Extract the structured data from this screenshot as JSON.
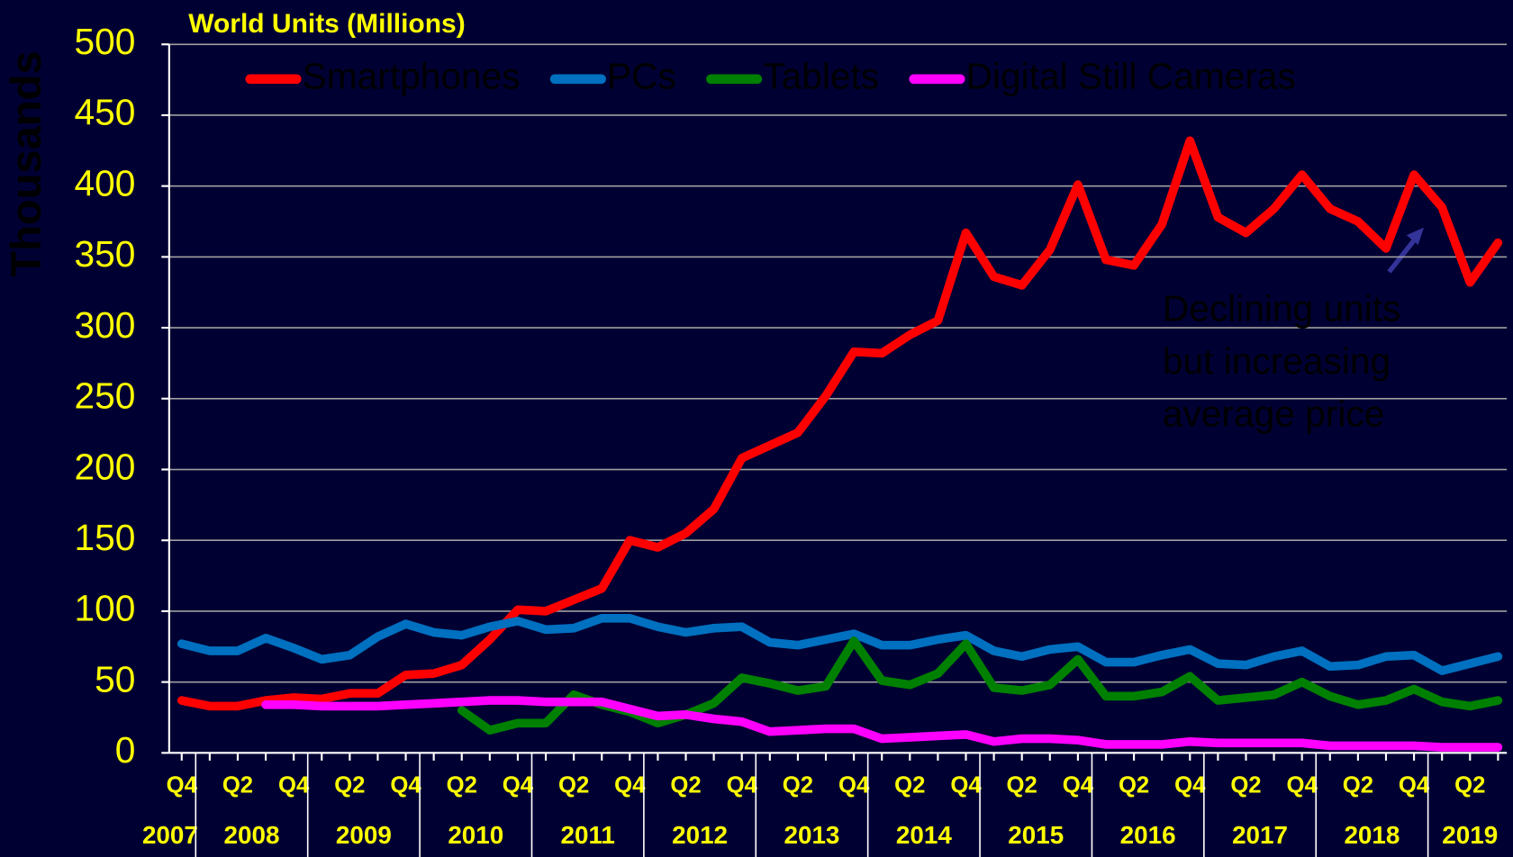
{
  "chart_data": {
    "type": "line",
    "title": "World Units (Millions)",
    "y_label": "Thousands",
    "categories": [
      "Q4",
      null,
      "Q2",
      null,
      "Q4",
      null,
      "Q2",
      null,
      "Q4",
      null,
      "Q2",
      null,
      "Q4",
      null,
      "Q2",
      null,
      "Q4",
      null,
      "Q2",
      null,
      "Q4",
      null,
      "Q2",
      null,
      "Q4",
      null,
      "Q2",
      null,
      "Q4",
      null,
      "Q2",
      null,
      "Q4",
      null,
      "Q2",
      null,
      "Q4",
      null,
      "Q2",
      null,
      "Q4",
      null,
      "Q2",
      null,
      "Q4",
      null,
      "Q2",
      null
    ],
    "year_labels": [
      "2007",
      "2008",
      "2009",
      "2010",
      "2011",
      "2012",
      "2013",
      "2014",
      "2015",
      "2016",
      "2017",
      "2018",
      "2019"
    ],
    "series": [
      {
        "name": "Smartphones",
        "color": "#ff0000",
        "values": [
          37,
          33,
          33,
          37,
          39,
          38,
          42,
          42,
          55,
          56,
          62,
          80,
          101,
          100,
          108,
          116,
          150,
          145,
          155,
          172,
          208,
          217,
          226,
          252,
          283,
          282,
          295,
          305,
          367,
          336,
          330,
          355,
          401,
          348,
          344,
          373,
          432,
          378,
          367,
          384,
          408,
          384,
          375,
          356,
          408,
          385,
          332,
          360
        ]
      },
      {
        "name": "PCs",
        "color": "#0070c0",
        "values": [
          77,
          72,
          72,
          81,
          74,
          66,
          69,
          82,
          91,
          85,
          83,
          89,
          93,
          87,
          88,
          95,
          95,
          89,
          85,
          88,
          89,
          78,
          76,
          80,
          84,
          76,
          76,
          80,
          83,
          72,
          68,
          73,
          75,
          64,
          64,
          69,
          73,
          63,
          62,
          68,
          72,
          61,
          62,
          68,
          69,
          58,
          63,
          68
        ]
      },
      {
        "name": "Tablets",
        "color": "#008000",
        "values": [
          null,
          null,
          null,
          null,
          null,
          null,
          null,
          null,
          null,
          null,
          30,
          16,
          21,
          21,
          41,
          34,
          29,
          21,
          27,
          35,
          53,
          49,
          44,
          47,
          79,
          51,
          48,
          56,
          77,
          46,
          44,
          48,
          66,
          40,
          40,
          43,
          54,
          37,
          39,
          41,
          50,
          40,
          34,
          37,
          45,
          36,
          33,
          37
        ]
      },
      {
        "name": "Digital Still Cameras",
        "color": "#ff00ff",
        "values": [
          null,
          null,
          null,
          34,
          34,
          33,
          33,
          33,
          34,
          35,
          36,
          37,
          37,
          36,
          36,
          36,
          31,
          26,
          27,
          24,
          22,
          15,
          16,
          17,
          17,
          10,
          11,
          12,
          13,
          8,
          10,
          10,
          9,
          6,
          6,
          6,
          8,
          7,
          7,
          7,
          7,
          5,
          5,
          5,
          5,
          4,
          4,
          4
        ]
      }
    ],
    "annotation": [
      "Declining units",
      "but increasing",
      "average price"
    ],
    "ylim": [
      0,
      500
    ],
    "yticks": [
      0,
      50,
      100,
      150,
      200,
      250,
      300,
      350,
      400,
      450,
      500
    ],
    "grid": true
  }
}
